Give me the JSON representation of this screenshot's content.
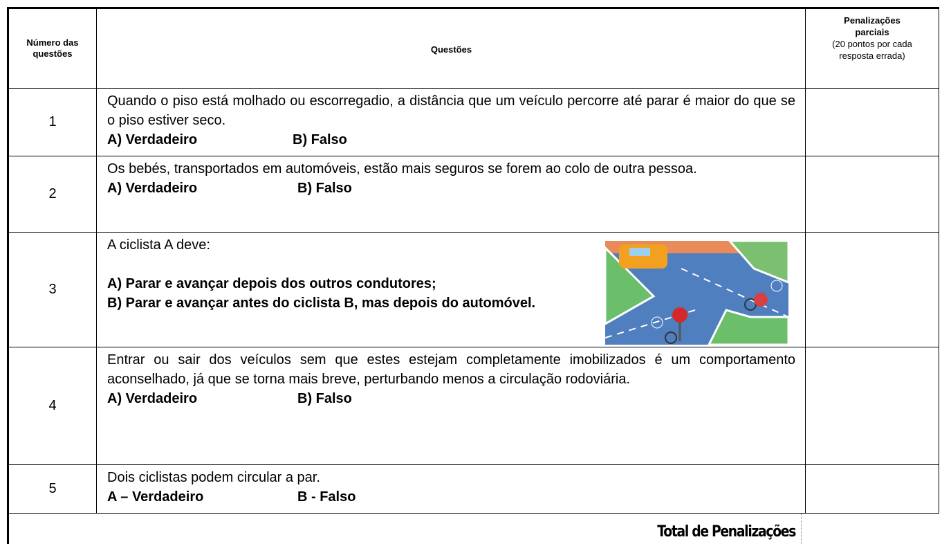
{
  "table": {
    "header": {
      "number": "Número das questões",
      "question": "Questões",
      "penalty_title": "Penalizações parciais",
      "penalty_note": "(20 pontos por cada resposta errada)"
    },
    "rows": [
      {
        "number": "1",
        "text": "Quando o piso está molhado ou escorregadio, a distância que um veículo percorre até parar é maior do que se o piso estiver seco.",
        "options": [
          "A) Verdadeiro",
          "B) Falso"
        ]
      },
      {
        "number": "2",
        "text": "Os bebés, transportados em automóveis, estão mais seguros se forem ao colo de outra pessoa.",
        "options": [
          "A) Verdadeiro",
          "B) Falso"
        ]
      },
      {
        "number": "3",
        "text": "A ciclista A deve:",
        "options": [
          "A) Parar e avançar depois dos outros condutores;",
          "B) Parar e avançar antes do ciclista B, mas depois do automóvel."
        ]
      },
      {
        "number": "4",
        "text": "Entrar ou sair dos veículos sem que estes estejam completamente imobilizados é um comportamento aconselhado, já que se torna mais breve, perturbando menos a circulação rodoviária.",
        "options": [
          "A) Verdadeiro",
          "B) Falso"
        ]
      },
      {
        "number": "5",
        "text": "Dois ciclistas podem circular a par.",
        "options": [
          "A – Verdadeiro",
          "B - Falso"
        ]
      }
    ],
    "total": "Total de Penalizações"
  }
}
